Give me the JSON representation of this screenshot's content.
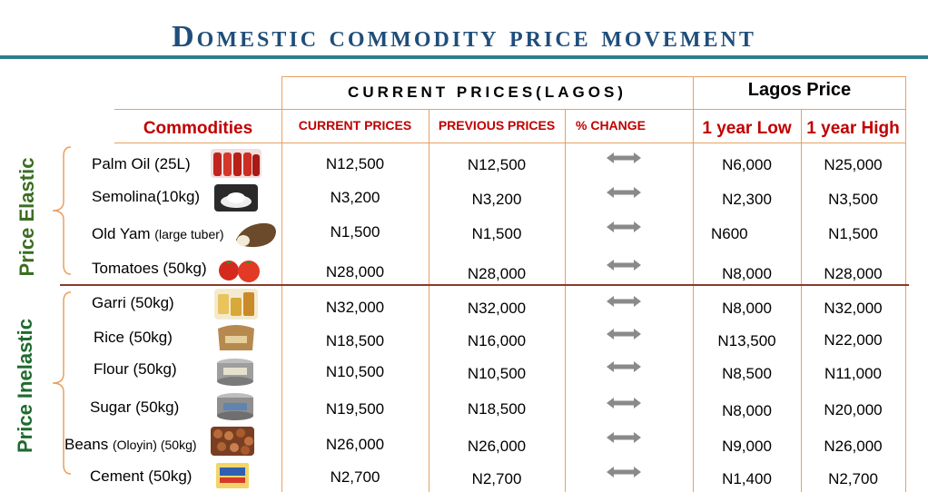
{
  "title": "Domestic commodity price movement",
  "header": {
    "current_group": "CURRENT PRICES(LAGOS)",
    "lagos_group": "Lagos Price",
    "commodities": "Commodities",
    "current_prices": "CURRENT PRICES",
    "previous_prices": "PREVIOUS PRICES",
    "pct_change": "% CHANGE",
    "year_low": "1 year Low",
    "year_high": "1 year High"
  },
  "groups": {
    "elastic": "Price Elastic",
    "inelastic": "Price Inelastic"
  },
  "colors": {
    "title": "#1f4e79",
    "header_red": "#c00000",
    "grid": "#e8a060",
    "elastic_label": "#3b6e22",
    "divider": "#8b3a2a"
  },
  "rows": [
    {
      "name": "Palm Oil (25L)",
      "name_small": "",
      "current": "N12,500",
      "previous": "N12,500",
      "change": "neutral-arrow-icon",
      "low": "N6,000",
      "high": "N25,000"
    },
    {
      "name": "Semolina(10kg)",
      "name_small": "",
      "current": "N3,200",
      "previous": "N3,200",
      "change": "neutral-arrow-icon",
      "low": "N2,300",
      "high": "N3,500"
    },
    {
      "name": "Old Yam ",
      "name_small": "(large tuber)",
      "current": "N1,500",
      "previous": "N1,500",
      "change": "neutral-arrow-icon",
      "low": "N600",
      "high": "N1,500"
    },
    {
      "name": "Tomatoes (50kg)",
      "name_small": "",
      "current": "N28,000",
      "previous": "N28,000",
      "change": "neutral-arrow-icon",
      "low": "N8,000",
      "high": "N28,000"
    },
    {
      "name": "Garri (50kg)",
      "name_small": "",
      "current": "N32,000",
      "previous": "N32,000",
      "change": "neutral-arrow-icon",
      "low": "N8,000",
      "high": "N32,000"
    },
    {
      "name": "Rice (50kg)",
      "name_small": "",
      "current": "N18,500",
      "previous": "N16,000",
      "change": "neutral-arrow-icon",
      "low": "N13,500",
      "high": "N22,000"
    },
    {
      "name": "Flour (50kg)",
      "name_small": "",
      "current": "N10,500",
      "previous": "N10,500",
      "change": "neutral-arrow-icon",
      "low": "N8,500",
      "high": "N11,000"
    },
    {
      "name": "Sugar (50kg)",
      "name_small": "",
      "current": "N19,500",
      "previous": "N18,500",
      "change": "neutral-arrow-icon",
      "low": "N8,000",
      "high": "N20,000"
    },
    {
      "name": "Beans ",
      "name_small": "(Oloyin) (50kg)",
      "current": "N26,000",
      "previous": "N26,000",
      "change": "neutral-arrow-icon",
      "low": "N9,000",
      "high": "N26,000"
    },
    {
      "name": "Cement (50kg)",
      "name_small": "",
      "current": "N2,700",
      "previous": "N2,700",
      "change": "neutral-arrow-icon",
      "low": "N1,400",
      "high": "N2,700"
    }
  ]
}
